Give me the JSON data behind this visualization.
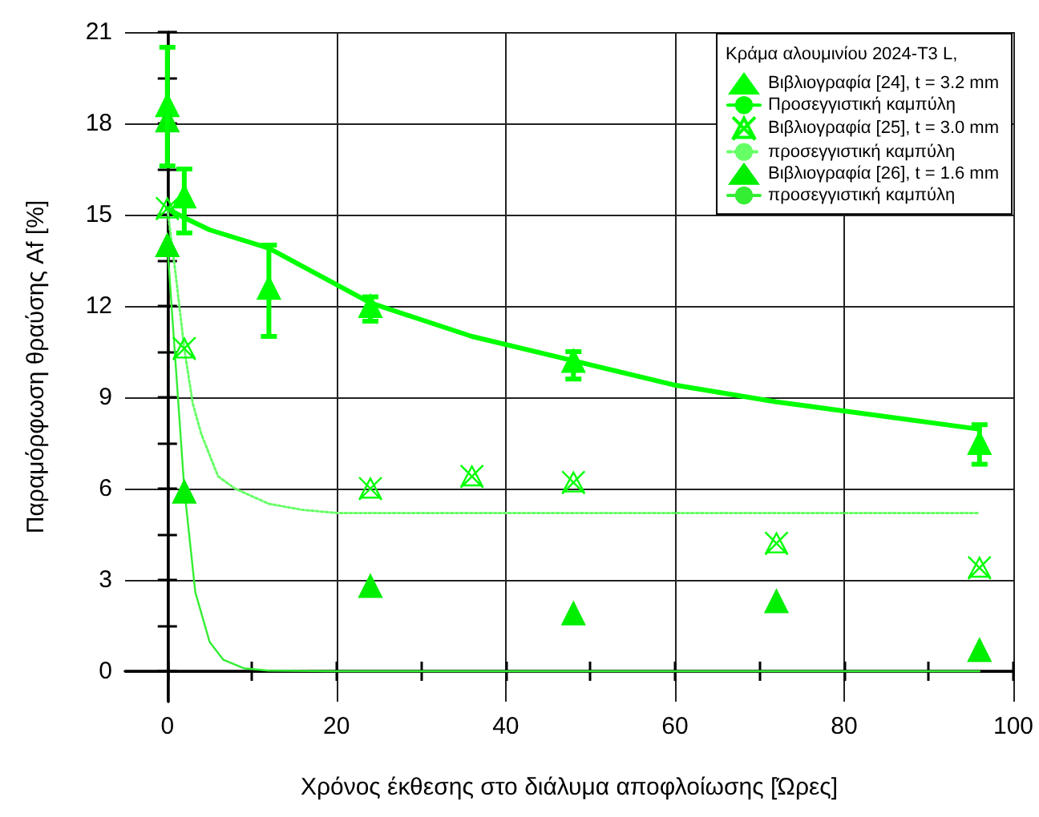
{
  "chart_data": {
    "type": "scatter",
    "xlabel": "Χρόνος έκθεσης στο διάλυμα αποφλοίωσης [Ώρες]",
    "ylabel": "Παραμόρφωση θραύσης Af [%]",
    "legend_title": "Κράμα αλουμινίου 2024-T3 L,",
    "legend": "top right",
    "grid": true,
    "xlim": [
      -5,
      100
    ],
    "ylim": [
      -1,
      21
    ],
    "xticks": [
      0,
      {
        "value": 10,
        "label": null
      },
      20,
      {
        "value": 30,
        "label": null
      },
      40,
      {
        "value": 50,
        "label": null
      },
      60,
      {
        "value": 70,
        "label": null
      },
      80,
      {
        "value": 90,
        "label": null
      },
      100
    ],
    "yticks": [
      0,
      {
        "value": 1.5,
        "label": null
      },
      3,
      {
        "value": 4.5,
        "label": null
      },
      6,
      {
        "value": 7.5,
        "label": null
      },
      9,
      {
        "value": 10.5,
        "label": null
      },
      12,
      {
        "value": 13.5,
        "label": null
      },
      15,
      {
        "value": 16.5,
        "label": null
      },
      18,
      {
        "value": 19.5,
        "label": null
      },
      21
    ],
    "series": [
      {
        "name": "Βιβλιογραφία [24], t = 3.2 mm",
        "marker": "triangle",
        "color": "#00ff00",
        "x": [
          0,
          2,
          12,
          24,
          48,
          96
        ],
        "values": [
          18.6,
          15.6,
          12.6,
          12.0,
          10.2,
          7.5
        ],
        "errors": [
          [
            16.6,
            20.5
          ],
          [
            14.4,
            16.5
          ],
          [
            11.0,
            14.0
          ],
          [
            11.5,
            12.3
          ],
          [
            9.6,
            10.5
          ],
          [
            6.8,
            8.1
          ]
        ]
      },
      {
        "name": "Προσεγγιστική καμπύλη",
        "type": "line",
        "marker": "none",
        "line_style": "solid",
        "color": "#00ff00",
        "x": [
          0,
          2,
          5,
          12,
          24,
          36,
          48,
          60,
          72,
          84,
          96
        ],
        "values": [
          15.2,
          14.9,
          14.5,
          13.9,
          12.1,
          11.0,
          10.2,
          9.4,
          8.85,
          8.4,
          7.95
        ]
      },
      {
        "name": "Βιβλιογραφία [25], t = 3.0 mm",
        "marker": "cross",
        "color": "#00ff00",
        "x": [
          0,
          2,
          24,
          36,
          48,
          72,
          96
        ],
        "values": [
          15.2,
          10.6,
          6.0,
          6.4,
          6.2,
          4.2,
          3.4
        ]
      },
      {
        "name": "προσεγγιστική καμπύλη",
        "type": "line",
        "marker": "none",
        "line_style": "dotted",
        "color": "#66ff66",
        "x": [
          0,
          1,
          2,
          3,
          4,
          6,
          8,
          12,
          16,
          20,
          40,
          60,
          96
        ],
        "values": [
          15.2,
          13.0,
          10.6,
          8.8,
          7.8,
          6.4,
          6.0,
          5.5,
          5.3,
          5.2,
          5.2,
          5.2,
          5.2
        ]
      },
      {
        "name": "Βιβλιογραφία [26], t = 1.6 mm",
        "marker": "triangle",
        "color": "#00ee00",
        "x": [
          0,
          0,
          2,
          24,
          48,
          72,
          96
        ],
        "values": [
          18.1,
          14.0,
          5.9,
          2.8,
          1.9,
          2.3,
          0.7
        ]
      },
      {
        "name": "προσεγγιστική καμπύλη",
        "type": "line",
        "marker": "none",
        "line_style": "solid",
        "color": "#33ee33",
        "x": [
          0,
          1,
          2,
          3.3,
          5,
          6.6,
          9,
          12,
          20,
          40,
          60,
          80,
          96
        ],
        "values": [
          14.0,
          10.0,
          6.0,
          2.6,
          0.96,
          0.38,
          0.1,
          0.02,
          0,
          0,
          0,
          0,
          0
        ]
      }
    ]
  }
}
